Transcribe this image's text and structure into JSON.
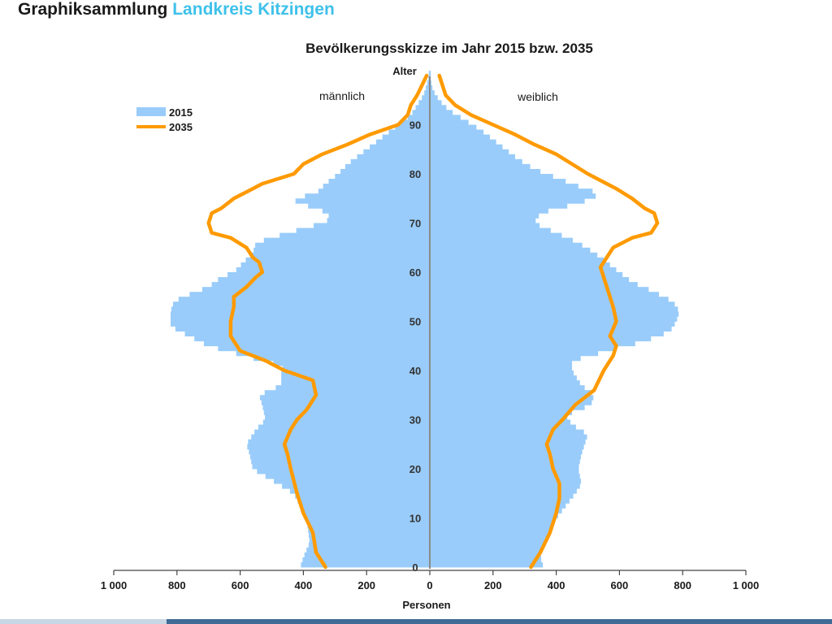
{
  "header": {
    "prefix": "Graphiksammlung",
    "highlight": "Landkreis Kitzingen"
  },
  "colors": {
    "bars_2015": "#99ccfa",
    "line_2035": "#ff9a00",
    "header_accent": "#3ec1ea",
    "axis": "#444444",
    "center_axis": "#8a8a8a"
  },
  "chart_data": {
    "type": "bar",
    "subtype": "population-pyramid",
    "title": "Bevölkerungsskizze im Jahr 2015 bzw. 2035",
    "y_axis_label": "Alter",
    "x_axis_label": "Personen",
    "left_label": "männlich",
    "right_label": "weiblich",
    "y_ticks": [
      0,
      10,
      20,
      30,
      40,
      50,
      60,
      70,
      80,
      90
    ],
    "x_ticks": [
      "1 000",
      "800",
      "600",
      "400",
      "200",
      "0",
      "200",
      "400",
      "600",
      "800",
      "1 000"
    ],
    "x_range": [
      -1000,
      1000
    ],
    "age_range": [
      0,
      100
    ],
    "legend": {
      "position": "top-left",
      "entries": [
        "2015",
        "2035"
      ]
    },
    "series": [
      {
        "name": "2015",
        "kind": "bars",
        "male": [
          [
            0,
            410
          ],
          [
            2,
            400
          ],
          [
            5,
            380
          ],
          [
            10,
            390
          ],
          [
            15,
            430
          ],
          [
            17,
            480
          ],
          [
            20,
            560
          ],
          [
            23,
            570
          ],
          [
            25,
            580
          ],
          [
            28,
            550
          ],
          [
            30,
            520
          ],
          [
            33,
            530
          ],
          [
            35,
            540
          ],
          [
            37,
            470
          ],
          [
            40,
            470
          ],
          [
            41,
            460
          ],
          [
            42,
            530
          ],
          [
            44,
            640
          ],
          [
            45,
            700
          ],
          [
            47,
            760
          ],
          [
            49,
            820
          ],
          [
            50,
            820
          ],
          [
            52,
            820
          ],
          [
            54,
            810
          ],
          [
            55,
            780
          ],
          [
            57,
            700
          ],
          [
            59,
            660
          ],
          [
            60,
            620
          ],
          [
            62,
            590
          ],
          [
            64,
            560
          ],
          [
            66,
            550
          ],
          [
            68,
            450
          ],
          [
            70,
            340
          ],
          [
            71,
            310
          ],
          [
            73,
            350
          ],
          [
            74,
            420
          ],
          [
            75,
            430
          ],
          [
            76,
            360
          ],
          [
            78,
            330
          ],
          [
            80,
            290
          ],
          [
            82,
            260
          ],
          [
            84,
            220
          ],
          [
            86,
            180
          ],
          [
            88,
            140
          ],
          [
            90,
            100
          ],
          [
            92,
            60
          ],
          [
            94,
            40
          ],
          [
            96,
            20
          ],
          [
            98,
            10
          ],
          [
            100,
            3
          ]
        ],
        "female": [
          [
            0,
            360
          ],
          [
            2,
            350
          ],
          [
            5,
            360
          ],
          [
            10,
            400
          ],
          [
            15,
            460
          ],
          [
            17,
            480
          ],
          [
            20,
            470
          ],
          [
            23,
            480
          ],
          [
            25,
            490
          ],
          [
            27,
            500
          ],
          [
            29,
            450
          ],
          [
            31,
            430
          ],
          [
            33,
            510
          ],
          [
            35,
            520
          ],
          [
            37,
            480
          ],
          [
            40,
            450
          ],
          [
            42,
            450
          ],
          [
            44,
            560
          ],
          [
            46,
            680
          ],
          [
            48,
            760
          ],
          [
            50,
            780
          ],
          [
            52,
            790
          ],
          [
            54,
            770
          ],
          [
            56,
            710
          ],
          [
            58,
            640
          ],
          [
            60,
            600
          ],
          [
            62,
            560
          ],
          [
            64,
            520
          ],
          [
            66,
            470
          ],
          [
            68,
            400
          ],
          [
            70,
            330
          ],
          [
            72,
            350
          ],
          [
            73,
            400
          ],
          [
            74,
            470
          ],
          [
            75,
            510
          ],
          [
            76,
            540
          ],
          [
            77,
            490
          ],
          [
            79,
            410
          ],
          [
            81,
            330
          ],
          [
            83,
            280
          ],
          [
            85,
            240
          ],
          [
            87,
            200
          ],
          [
            89,
            160
          ],
          [
            91,
            110
          ],
          [
            93,
            60
          ],
          [
            95,
            30
          ],
          [
            97,
            10
          ],
          [
            99,
            3
          ]
        ]
      },
      {
        "name": "2035",
        "kind": "line",
        "male": [
          [
            0,
            330
          ],
          [
            3,
            360
          ],
          [
            7,
            370
          ],
          [
            11,
            400
          ],
          [
            15,
            420
          ],
          [
            20,
            440
          ],
          [
            23,
            450
          ],
          [
            25,
            460
          ],
          [
            28,
            440
          ],
          [
            30,
            420
          ],
          [
            32,
            390
          ],
          [
            35,
            360
          ],
          [
            38,
            370
          ],
          [
            40,
            460
          ],
          [
            42,
            520
          ],
          [
            44,
            600
          ],
          [
            47,
            630
          ],
          [
            50,
            630
          ],
          [
            53,
            620
          ],
          [
            55,
            620
          ],
          [
            57,
            580
          ],
          [
            59,
            550
          ],
          [
            60,
            530
          ],
          [
            62,
            540
          ],
          [
            63,
            560
          ],
          [
            65,
            580
          ],
          [
            67,
            630
          ],
          [
            68,
            690
          ],
          [
            70,
            700
          ],
          [
            72,
            690
          ],
          [
            73,
            660
          ],
          [
            75,
            620
          ],
          [
            77,
            560
          ],
          [
            78,
            530
          ],
          [
            80,
            430
          ],
          [
            82,
            400
          ],
          [
            84,
            340
          ],
          [
            86,
            260
          ],
          [
            88,
            190
          ],
          [
            90,
            100
          ],
          [
            92,
            70
          ],
          [
            94,
            60
          ],
          [
            96,
            40
          ],
          [
            98,
            25
          ],
          [
            100,
            10
          ]
        ],
        "female": [
          [
            0,
            320
          ],
          [
            3,
            350
          ],
          [
            7,
            380
          ],
          [
            11,
            400
          ],
          [
            14,
            410
          ],
          [
            17,
            410
          ],
          [
            20,
            390
          ],
          [
            23,
            380
          ],
          [
            25,
            370
          ],
          [
            28,
            390
          ],
          [
            30,
            420
          ],
          [
            33,
            460
          ],
          [
            36,
            520
          ],
          [
            40,
            550
          ],
          [
            43,
            580
          ],
          [
            45,
            590
          ],
          [
            47,
            570
          ],
          [
            50,
            590
          ],
          [
            53,
            580
          ],
          [
            55,
            570
          ],
          [
            57,
            560
          ],
          [
            59,
            550
          ],
          [
            61,
            540
          ],
          [
            63,
            560
          ],
          [
            65,
            580
          ],
          [
            67,
            640
          ],
          [
            68,
            700
          ],
          [
            70,
            720
          ],
          [
            72,
            710
          ],
          [
            73,
            680
          ],
          [
            75,
            640
          ],
          [
            77,
            590
          ],
          [
            80,
            500
          ],
          [
            82,
            450
          ],
          [
            84,
            400
          ],
          [
            86,
            330
          ],
          [
            88,
            270
          ],
          [
            90,
            200
          ],
          [
            92,
            130
          ],
          [
            94,
            80
          ],
          [
            96,
            50
          ],
          [
            98,
            40
          ],
          [
            100,
            30
          ]
        ]
      }
    ]
  }
}
